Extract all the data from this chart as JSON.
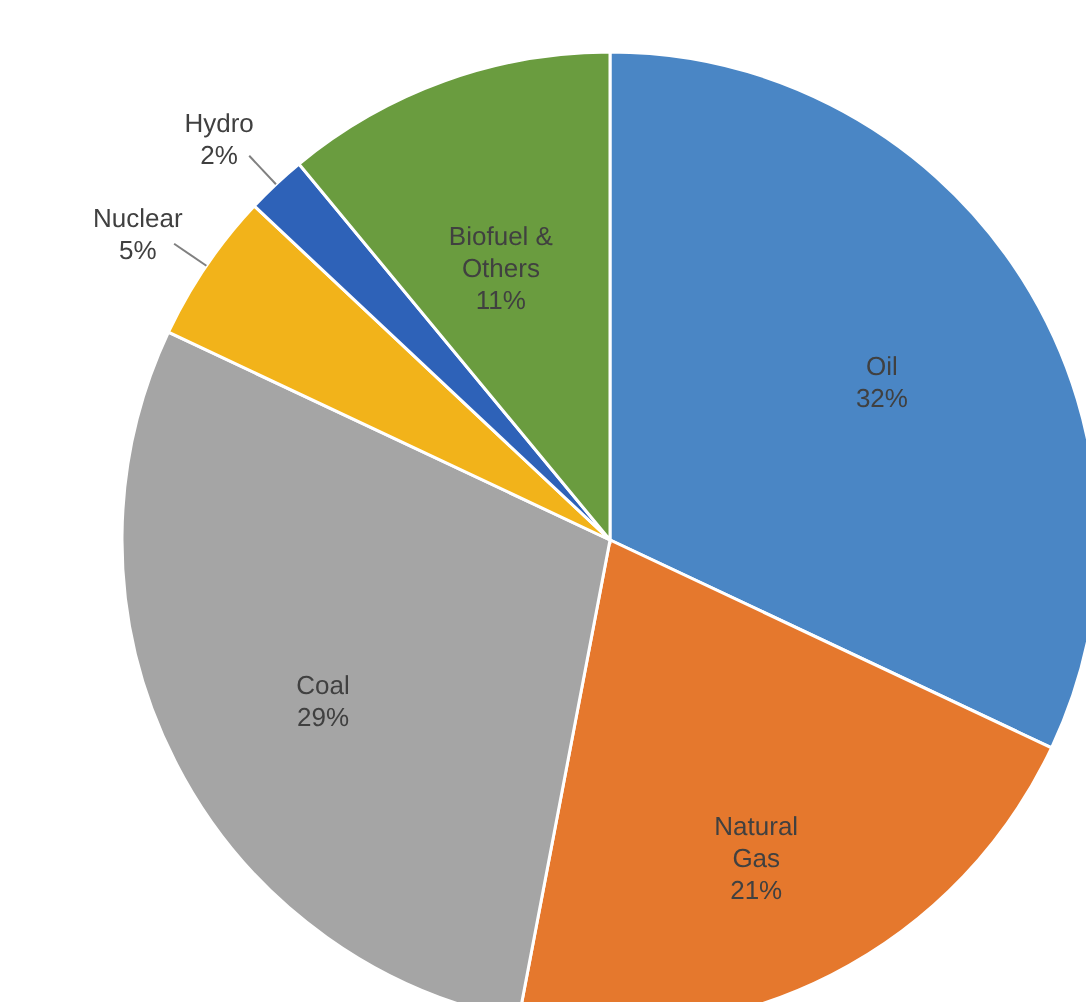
{
  "chart_data": {
    "type": "pie",
    "categories": [
      "Oil",
      "Natural Gas",
      "Coal",
      "Nuclear",
      "Hydro",
      "Biofuel & Others"
    ],
    "values": [
      32,
      21,
      29,
      5,
      2,
      11
    ],
    "value_labels": [
      "32%",
      "21%",
      "29%",
      "5%",
      "2%",
      "11%"
    ],
    "colors": [
      "#4a86c5",
      "#e5782d",
      "#a5a5a5",
      "#f2b31a",
      "#2e62b8",
      "#6a9c3f"
    ]
  }
}
